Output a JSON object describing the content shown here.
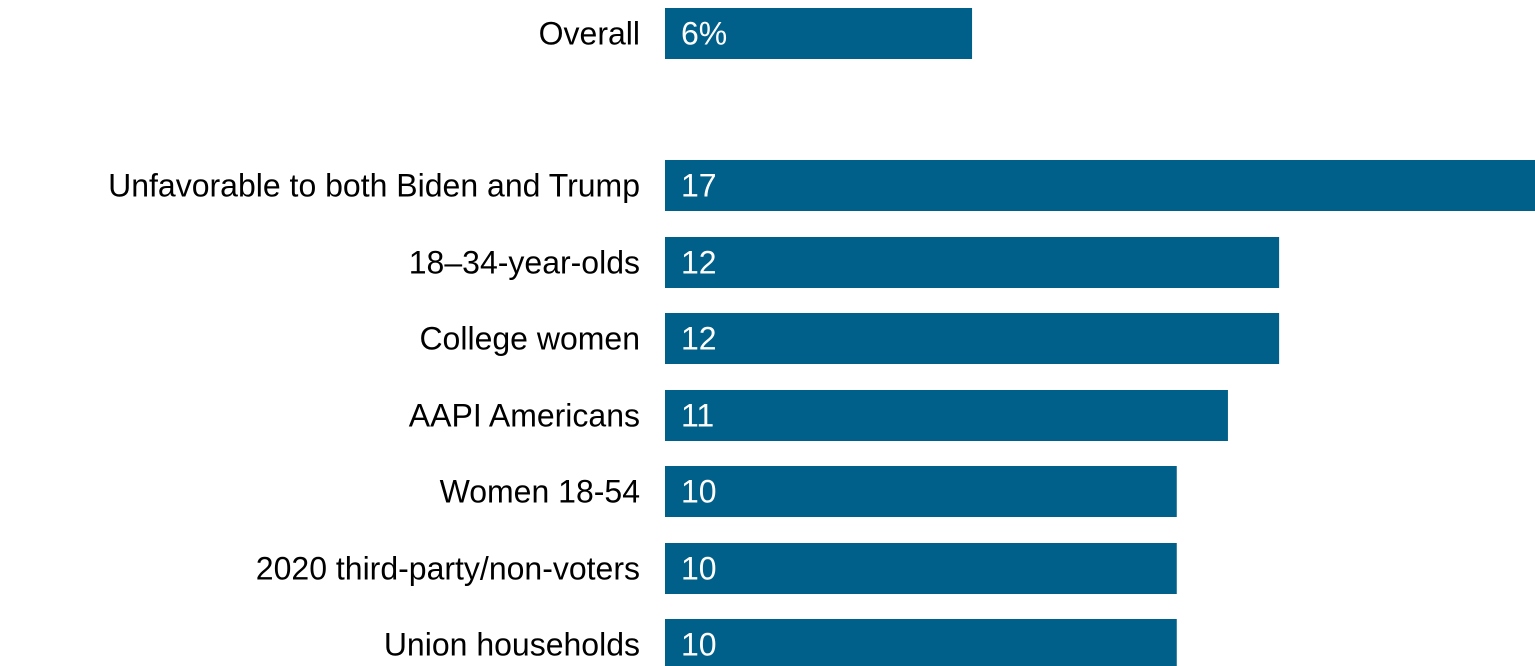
{
  "chart_data": {
    "type": "bar",
    "orientation": "horizontal",
    "bar_color": "#00608a",
    "categories": [
      "Overall",
      "Unfavorable to both Biden and Trump",
      "18–34-year-olds",
      "College women",
      "AAPI Americans",
      "Women 18-54",
      "2020 third-party/non-voters",
      "Union households"
    ],
    "values": [
      6,
      17,
      12,
      12,
      11,
      10,
      10,
      10
    ],
    "value_labels": [
      "6%",
      "17",
      "12",
      "12",
      "11",
      "10",
      "10",
      "10"
    ],
    "xlim": [
      0,
      17
    ],
    "grid": false,
    "legend": "none"
  }
}
